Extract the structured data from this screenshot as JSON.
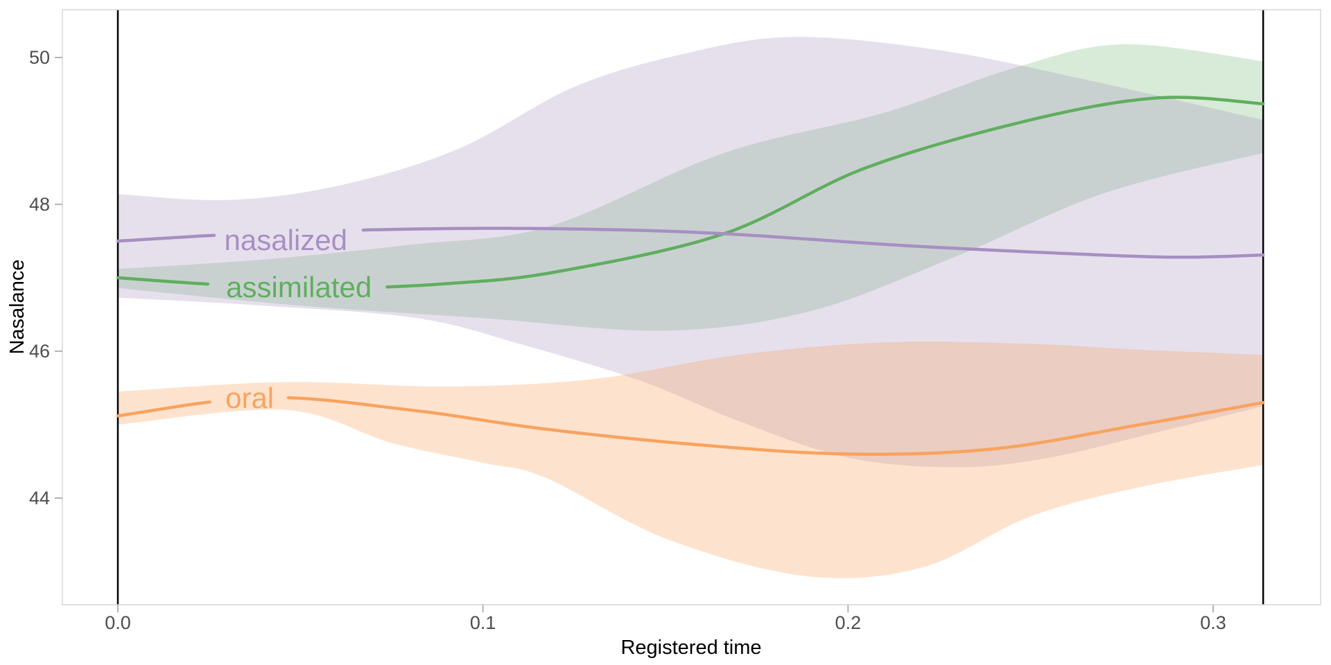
{
  "chart_data": {
    "type": "line",
    "title": "",
    "xlabel": "Registered time",
    "ylabel": "Nasalance",
    "x_ticks": [
      {
        "t": 0.0,
        "label": "0.0"
      },
      {
        "t": 0.1,
        "label": "0.1"
      },
      {
        "t": 0.2,
        "label": "0.2"
      },
      {
        "t": 0.3,
        "label": "0.3"
      }
    ],
    "y_ticks": [
      {
        "v": 44,
        "label": "44"
      },
      {
        "v": 46,
        "label": "46"
      },
      {
        "v": 48,
        "label": "48"
      },
      {
        "v": 50,
        "label": "50"
      }
    ],
    "xlim": [
      -0.0152,
      0.3294
    ],
    "ylim": [
      42.55,
      50.65
    ],
    "grid": "off",
    "legend": "direct labels on lines",
    "vlines": {
      "color": "#000000",
      "positions": [
        0.0,
        0.3137
      ]
    },
    "panel_border_color": "#d6d6d6",
    "tick_mark_color": "#b3b3b3",
    "series": [
      {
        "name": "assimilated",
        "line_color": "#5fae5f",
        "band_color": "#5aab5a",
        "band_opacity": 0.24,
        "label_pos": {
          "t": 0.0496,
          "v": 46.87
        },
        "label_gap_t": [
          0.026,
          0.0731
        ],
        "line": [
          [
            0,
            47.0
          ],
          [
            0.03,
            46.9
          ],
          [
            0.06,
            46.86
          ],
          [
            0.09,
            46.92
          ],
          [
            0.12,
            47.08
          ],
          [
            0.166,
            47.6
          ],
          [
            0.205,
            48.5
          ],
          [
            0.25,
            49.15
          ],
          [
            0.285,
            49.45
          ],
          [
            0.3137,
            49.37
          ]
        ],
        "upper": [
          [
            0,
            47.12
          ],
          [
            0.04,
            47.25
          ],
          [
            0.08,
            47.45
          ],
          [
            0.118,
            47.7
          ],
          [
            0.166,
            48.7
          ],
          [
            0.21,
            49.25
          ],
          [
            0.245,
            49.85
          ],
          [
            0.275,
            50.18
          ],
          [
            0.3137,
            49.95
          ]
        ],
        "lower": [
          [
            0,
            46.86
          ],
          [
            0.05,
            46.62
          ],
          [
            0.1,
            46.45
          ],
          [
            0.15,
            46.28
          ],
          [
            0.19,
            46.55
          ],
          [
            0.23,
            47.3
          ],
          [
            0.27,
            48.15
          ],
          [
            0.3137,
            48.7
          ]
        ]
      },
      {
        "name": "nasalized",
        "line_color": "#a78fc2",
        "band_color": "#9e86bb",
        "band_opacity": 0.26,
        "label_pos": {
          "t": 0.046,
          "v": 47.51
        },
        "label_gap_t": [
          0.0266,
          0.0659
        ],
        "line": [
          [
            0,
            47.5
          ],
          [
            0.04,
            47.61
          ],
          [
            0.09,
            47.67
          ],
          [
            0.13,
            47.66
          ],
          [
            0.166,
            47.6
          ],
          [
            0.215,
            47.44
          ],
          [
            0.26,
            47.33
          ],
          [
            0.29,
            47.28
          ],
          [
            0.3137,
            47.31
          ]
        ],
        "upper": [
          [
            0,
            48.14
          ],
          [
            0.03,
            48.06
          ],
          [
            0.06,
            48.25
          ],
          [
            0.093,
            48.75
          ],
          [
            0.125,
            49.6
          ],
          [
            0.155,
            50.05
          ],
          [
            0.185,
            50.28
          ],
          [
            0.225,
            50.1
          ],
          [
            0.265,
            49.7
          ],
          [
            0.3137,
            49.15
          ]
        ],
        "lower": [
          [
            0,
            46.73
          ],
          [
            0.04,
            46.62
          ],
          [
            0.082,
            46.45
          ],
          [
            0.11,
            46.1
          ],
          [
            0.143,
            45.6
          ],
          [
            0.17,
            45.05
          ],
          [
            0.2,
            44.55
          ],
          [
            0.23,
            44.42
          ],
          [
            0.255,
            44.55
          ],
          [
            0.285,
            44.9
          ],
          [
            0.3137,
            45.25
          ]
        ]
      },
      {
        "name": "oral",
        "line_color": "#f9a35e",
        "band_color": "#f9a35e",
        "band_opacity": 0.3,
        "label_pos": {
          "t": 0.0361,
          "v": 45.36
        },
        "label_gap_t": [
          0.026,
          0.0462
        ],
        "line": [
          [
            0,
            45.12
          ],
          [
            0.04,
            45.37
          ],
          [
            0.08,
            45.2
          ],
          [
            0.117,
            44.94
          ],
          [
            0.158,
            44.73
          ],
          [
            0.2,
            44.6
          ],
          [
            0.24,
            44.67
          ],
          [
            0.28,
            45.0
          ],
          [
            0.3137,
            45.3
          ]
        ],
        "upper": [
          [
            0,
            45.45
          ],
          [
            0.046,
            45.58
          ],
          [
            0.09,
            45.52
          ],
          [
            0.13,
            45.62
          ],
          [
            0.17,
            45.95
          ],
          [
            0.21,
            46.12
          ],
          [
            0.25,
            46.1
          ],
          [
            0.28,
            46.02
          ],
          [
            0.3137,
            45.95
          ]
        ],
        "lower": [
          [
            0,
            45.0
          ],
          [
            0.046,
            45.2
          ],
          [
            0.075,
            44.75
          ],
          [
            0.1,
            44.48
          ],
          [
            0.117,
            44.28
          ],
          [
            0.15,
            43.45
          ],
          [
            0.188,
            42.94
          ],
          [
            0.22,
            43.05
          ],
          [
            0.25,
            43.75
          ],
          [
            0.28,
            44.15
          ],
          [
            0.3137,
            44.45
          ]
        ]
      }
    ]
  }
}
